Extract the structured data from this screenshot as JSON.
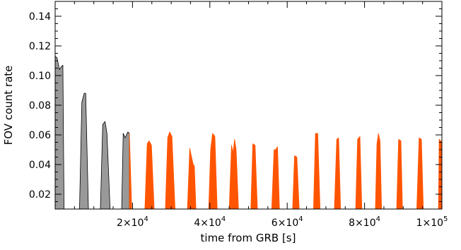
{
  "chart_data": {
    "type": "area",
    "title": "",
    "xlabel": "time from GRB [s]",
    "ylabel": "FOV count rate",
    "xlim": [
      0,
      100000
    ],
    "ylim": [
      0.01,
      0.15
    ],
    "grid": false,
    "x_ticks": [
      {
        "value": 20000,
        "mant": "2",
        "exp": "4"
      },
      {
        "value": 40000,
        "mant": "4",
        "exp": "4"
      },
      {
        "value": 60000,
        "mant": "6",
        "exp": "4"
      },
      {
        "value": 80000,
        "mant": "8",
        "exp": "4"
      },
      {
        "value": 100000,
        "mant": "1",
        "exp": "5"
      }
    ],
    "y_ticks": [
      0.02,
      0.04,
      0.06,
      0.08,
      0.1,
      0.12,
      0.14
    ],
    "y_tick_labels": [
      "0.02",
      "0.04",
      "0.06",
      "0.08",
      "0.10",
      "0.12",
      "0.14"
    ],
    "series": [
      {
        "color": "#999999",
        "outline": "#000000",
        "points": [
          [
            0,
            0.113
          ],
          [
            500,
            0.112
          ],
          [
            1100,
            0.104
          ],
          [
            1600,
            0.106
          ],
          [
            2000,
            0.107
          ],
          [
            2300,
            0.01
          ],
          [
            6300,
            0.01
          ],
          [
            6900,
            0.082
          ],
          [
            7500,
            0.088
          ],
          [
            7900,
            0.088
          ],
          [
            8600,
            0.01
          ],
          [
            11700,
            0.01
          ],
          [
            12300,
            0.067
          ],
          [
            12900,
            0.069
          ],
          [
            13400,
            0.061
          ],
          [
            14200,
            0.01
          ],
          [
            17200,
            0.01
          ],
          [
            17600,
            0.061
          ],
          [
            18100,
            0.058
          ],
          [
            18800,
            0.062
          ],
          [
            19200,
            0.061
          ]
        ]
      },
      {
        "color": "#ff5500",
        "outline": "#ff5500",
        "points": [
          [
            19200,
            0.061
          ],
          [
            19800,
            0.01
          ],
          [
            23200,
            0.01
          ],
          [
            23800,
            0.054
          ],
          [
            24300,
            0.056
          ],
          [
            24900,
            0.053
          ],
          [
            25600,
            0.01
          ],
          [
            28500,
            0.01
          ],
          [
            29100,
            0.058
          ],
          [
            29600,
            0.062
          ],
          [
            30200,
            0.059
          ],
          [
            31000,
            0.01
          ],
          [
            34200,
            0.01
          ],
          [
            34800,
            0.051
          ],
          [
            35200,
            0.046
          ],
          [
            35700,
            0.04
          ],
          [
            36000,
            0.039
          ],
          [
            36400,
            0.01
          ],
          [
            39700,
            0.01
          ],
          [
            40200,
            0.05
          ],
          [
            40700,
            0.061
          ],
          [
            41300,
            0.059
          ],
          [
            41900,
            0.01
          ],
          [
            45000,
            0.01
          ],
          [
            45600,
            0.053
          ],
          [
            46000,
            0.048
          ],
          [
            46400,
            0.057
          ],
          [
            46800,
            0.05
          ],
          [
            47400,
            0.01
          ],
          [
            50600,
            0.01
          ],
          [
            51100,
            0.054
          ],
          [
            51700,
            0.053
          ],
          [
            52300,
            0.01
          ],
          [
            56000,
            0.01
          ],
          [
            56600,
            0.05
          ],
          [
            57000,
            0.05
          ],
          [
            57500,
            0.052
          ],
          [
            58000,
            0.01
          ],
          [
            61400,
            0.01
          ],
          [
            61900,
            0.046
          ],
          [
            62500,
            0.045
          ],
          [
            63100,
            0.01
          ],
          [
            66800,
            0.01
          ],
          [
            67300,
            0.061
          ],
          [
            67900,
            0.061
          ],
          [
            68500,
            0.01
          ],
          [
            72200,
            0.01
          ],
          [
            72800,
            0.057
          ],
          [
            73300,
            0.058
          ],
          [
            73800,
            0.01
          ],
          [
            77700,
            0.01
          ],
          [
            78200,
            0.057
          ],
          [
            78800,
            0.059
          ],
          [
            79300,
            0.01
          ],
          [
            82800,
            0.01
          ],
          [
            83200,
            0.054
          ],
          [
            83600,
            0.061
          ],
          [
            84000,
            0.056
          ],
          [
            84400,
            0.01
          ],
          [
            88300,
            0.01
          ],
          [
            88800,
            0.057
          ],
          [
            89400,
            0.056
          ],
          [
            89800,
            0.01
          ],
          [
            93500,
            0.01
          ],
          [
            94100,
            0.058
          ],
          [
            94700,
            0.057
          ],
          [
            95200,
            0.01
          ],
          [
            99100,
            0.01
          ],
          [
            99300,
            0.057
          ],
          [
            99700,
            0.056
          ],
          [
            100000,
            0.055
          ]
        ]
      }
    ]
  }
}
